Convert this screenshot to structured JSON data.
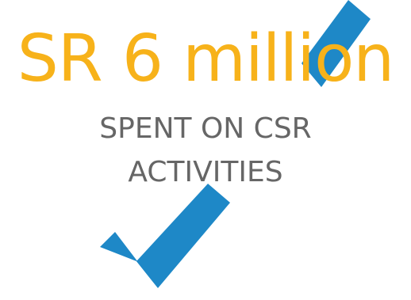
{
  "headline": {
    "text": "SR 6 million",
    "color": "#F7B21A"
  },
  "subline": {
    "line1": "SPENT ON CSR",
    "line2": "ACTIVITIES",
    "color": "#666666"
  },
  "graphic": {
    "icon": "checkmark-icon",
    "color": "#1E88C7"
  }
}
